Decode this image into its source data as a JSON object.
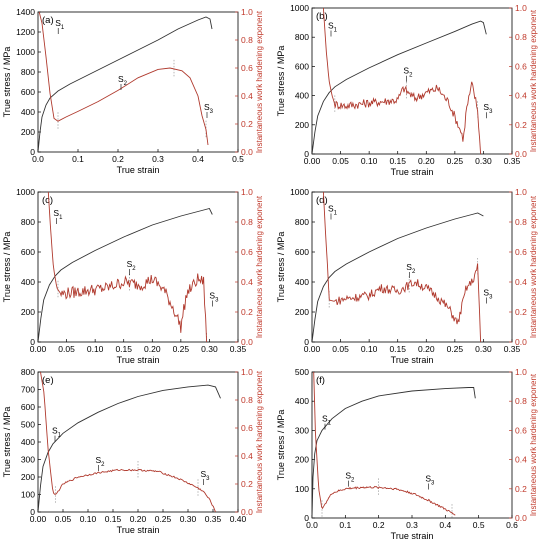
{
  "figure": {
    "accent_left": "#000000",
    "accent_right": "#c0392b",
    "stress_color": "#333333",
    "n_color": "#b03a2e"
  },
  "chart_data": [
    {
      "panel": "(a)",
      "type": "line",
      "xlabel": "True strain",
      "ylabel": "True stress / MPa",
      "y2label": "Instantaneous work hardening exponent",
      "xlim": [
        0,
        0.5
      ],
      "ylim": [
        0,
        1400
      ],
      "y2lim": [
        0,
        1.0
      ],
      "xticks": [
        "0.0",
        "0.1",
        "0.2",
        "0.3",
        "0.4",
        "0.5"
      ],
      "yticks": [
        "0",
        "200",
        "400",
        "600",
        "800",
        "1000",
        "1200",
        "1400"
      ],
      "y2ticks": [
        "0.0",
        "0.2",
        "0.4",
        "0.6",
        "0.8",
        "1.0"
      ],
      "stress": [
        [
          0,
          0
        ],
        [
          0.005,
          200
        ],
        [
          0.01,
          350
        ],
        [
          0.02,
          470
        ],
        [
          0.03,
          540
        ],
        [
          0.05,
          610
        ],
        [
          0.08,
          680
        ],
        [
          0.12,
          760
        ],
        [
          0.16,
          840
        ],
        [
          0.2,
          920
        ],
        [
          0.25,
          1020
        ],
        [
          0.3,
          1120
        ],
        [
          0.35,
          1230
        ],
        [
          0.4,
          1320
        ],
        [
          0.42,
          1350
        ],
        [
          0.43,
          1330
        ],
        [
          0.435,
          1230
        ]
      ],
      "n": [
        [
          0.003,
          1.0
        ],
        [
          0.01,
          0.92
        ],
        [
          0.02,
          0.68
        ],
        [
          0.03,
          0.42
        ],
        [
          0.04,
          0.24
        ],
        [
          0.05,
          0.22
        ],
        [
          0.07,
          0.25
        ],
        [
          0.1,
          0.29
        ],
        [
          0.15,
          0.36
        ],
        [
          0.2,
          0.44
        ],
        [
          0.25,
          0.53
        ],
        [
          0.3,
          0.59
        ],
        [
          0.33,
          0.6
        ],
        [
          0.36,
          0.58
        ],
        [
          0.38,
          0.53
        ],
        [
          0.4,
          0.4
        ],
        [
          0.41,
          0.26
        ],
        [
          0.42,
          0.16
        ],
        [
          0.425,
          0.05
        ]
      ],
      "noise": 0,
      "markers": [
        {
          "label": "S",
          "sub": "1",
          "x": 0.043,
          "y": 0.9
        },
        {
          "label": "S",
          "sub": "2",
          "x": 0.2,
          "y": 0.5
        },
        {
          "label": "S",
          "sub": "3",
          "x": 0.415,
          "y": 0.3
        }
      ],
      "dashes": [
        0.05,
        0.34,
        0.42
      ]
    },
    {
      "panel": "(b)",
      "type": "line",
      "xlabel": "True strain",
      "ylabel": "True stress / MPa",
      "y2label": "Instantaneous work hardening exponent",
      "xlim": [
        0,
        0.35
      ],
      "ylim": [
        0,
        1000
      ],
      "y2lim": [
        0,
        1.0
      ],
      "xticks": [
        "0.00",
        "0.05",
        "0.10",
        "0.15",
        "0.20",
        "0.25",
        "0.30",
        "0.35"
      ],
      "yticks": [
        "0",
        "200",
        "400",
        "600",
        "800",
        "1000"
      ],
      "y2ticks": [
        "0.0",
        "0.2",
        "0.4",
        "0.6",
        "0.8",
        "1.0"
      ],
      "stress": [
        [
          0,
          0
        ],
        [
          0.005,
          150
        ],
        [
          0.01,
          260
        ],
        [
          0.02,
          360
        ],
        [
          0.03,
          420
        ],
        [
          0.04,
          460
        ],
        [
          0.06,
          510
        ],
        [
          0.1,
          590
        ],
        [
          0.15,
          680
        ],
        [
          0.2,
          760
        ],
        [
          0.25,
          840
        ],
        [
          0.28,
          890
        ],
        [
          0.295,
          910
        ],
        [
          0.3,
          900
        ],
        [
          0.305,
          820
        ]
      ],
      "n": [
        [
          0.02,
          1.0
        ],
        [
          0.025,
          0.7
        ],
        [
          0.03,
          0.5
        ],
        [
          0.035,
          0.4
        ],
        [
          0.04,
          0.34
        ],
        [
          0.06,
          0.33
        ],
        [
          0.1,
          0.35
        ],
        [
          0.15,
          0.37
        ],
        [
          0.16,
          0.45
        ],
        [
          0.18,
          0.38
        ],
        [
          0.2,
          0.42
        ],
        [
          0.22,
          0.45
        ],
        [
          0.24,
          0.35
        ],
        [
          0.26,
          0.16
        ],
        [
          0.265,
          0.1
        ],
        [
          0.27,
          0.3
        ],
        [
          0.28,
          0.48
        ],
        [
          0.29,
          0.3
        ],
        [
          0.295,
          0.0
        ]
      ],
      "noise": 0.03,
      "markers": [
        {
          "label": "S",
          "sub": "1",
          "x": 0.028,
          "y": 0.86
        },
        {
          "label": "S",
          "sub": "2",
          "x": 0.16,
          "y": 0.55
        },
        {
          "label": "S",
          "sub": "3",
          "x": 0.3,
          "y": 0.3
        }
      ],
      "dashes": [
        0.04,
        0.165,
        0.29
      ]
    },
    {
      "panel": "(c)",
      "type": "line",
      "xlabel": "True strain",
      "ylabel": "True stress / MPa",
      "y2label": "Instantaneous work hardening exponent",
      "xlim": [
        0,
        0.35
      ],
      "ylim": [
        0,
        1000
      ],
      "y2lim": [
        0,
        1.0
      ],
      "xticks": [
        "0.00",
        "0.05",
        "0.10",
        "0.15",
        "0.20",
        "0.25",
        "0.30",
        "0.35"
      ],
      "yticks": [
        "0",
        "200",
        "400",
        "600",
        "800",
        "1000"
      ],
      "y2ticks": [
        "0.0",
        "0.2",
        "0.4",
        "0.6",
        "0.8",
        "1.0"
      ],
      "stress": [
        [
          0,
          0
        ],
        [
          0.005,
          160
        ],
        [
          0.01,
          280
        ],
        [
          0.02,
          380
        ],
        [
          0.03,
          440
        ],
        [
          0.04,
          480
        ],
        [
          0.06,
          530
        ],
        [
          0.1,
          610
        ],
        [
          0.15,
          700
        ],
        [
          0.2,
          780
        ],
        [
          0.25,
          840
        ],
        [
          0.29,
          880
        ],
        [
          0.3,
          890
        ],
        [
          0.305,
          850
        ]
      ],
      "n": [
        [
          0.018,
          1.0
        ],
        [
          0.022,
          0.75
        ],
        [
          0.027,
          0.5
        ],
        [
          0.033,
          0.36
        ],
        [
          0.04,
          0.32
        ],
        [
          0.08,
          0.34
        ],
        [
          0.12,
          0.36
        ],
        [
          0.15,
          0.4
        ],
        [
          0.18,
          0.38
        ],
        [
          0.2,
          0.42
        ],
        [
          0.22,
          0.35
        ],
        [
          0.24,
          0.2
        ],
        [
          0.25,
          0.1
        ],
        [
          0.26,
          0.32
        ],
        [
          0.28,
          0.42
        ],
        [
          0.29,
          0.4
        ],
        [
          0.295,
          0.0
        ]
      ],
      "noise": 0.04,
      "markers": [
        {
          "label": "S",
          "sub": "1",
          "x": 0.027,
          "y": 0.84
        },
        {
          "label": "S",
          "sub": "2",
          "x": 0.155,
          "y": 0.5
        },
        {
          "label": "S",
          "sub": "3",
          "x": 0.3,
          "y": 0.29
        }
      ],
      "dashes": [
        0.035,
        0.16,
        0.295
      ]
    },
    {
      "panel": "(d)",
      "type": "line",
      "xlabel": "True strain",
      "ylabel": "True stress / MPa",
      "y2label": "Instantaneous work hardening exponent",
      "xlim": [
        0,
        0.35
      ],
      "ylim": [
        0,
        1000
      ],
      "y2lim": [
        0,
        1.0
      ],
      "xticks": [
        "0.00",
        "0.05",
        "0.10",
        "0.15",
        "0.20",
        "0.25",
        "0.30",
        "0.35"
      ],
      "yticks": [
        "0",
        "200",
        "400",
        "600",
        "800",
        "1000"
      ],
      "y2ticks": [
        "0.0",
        "0.2",
        "0.4",
        "0.6",
        "0.8",
        "1.0"
      ],
      "stress": [
        [
          0,
          0
        ],
        [
          0.005,
          150
        ],
        [
          0.01,
          270
        ],
        [
          0.02,
          370
        ],
        [
          0.03,
          430
        ],
        [
          0.04,
          470
        ],
        [
          0.06,
          520
        ],
        [
          0.1,
          600
        ],
        [
          0.15,
          690
        ],
        [
          0.2,
          760
        ],
        [
          0.25,
          820
        ],
        [
          0.28,
          850
        ],
        [
          0.29,
          860
        ],
        [
          0.3,
          840
        ]
      ],
      "n": [
        [
          0.02,
          1.0
        ],
        [
          0.024,
          0.7
        ],
        [
          0.028,
          0.45
        ],
        [
          0.03,
          0.28
        ],
        [
          0.04,
          0.27
        ],
        [
          0.06,
          0.29
        ],
        [
          0.1,
          0.31
        ],
        [
          0.12,
          0.36
        ],
        [
          0.15,
          0.34
        ],
        [
          0.18,
          0.4
        ],
        [
          0.2,
          0.36
        ],
        [
          0.22,
          0.3
        ],
        [
          0.24,
          0.22
        ],
        [
          0.255,
          0.12
        ],
        [
          0.27,
          0.36
        ],
        [
          0.28,
          0.4
        ],
        [
          0.29,
          0.5
        ],
        [
          0.295,
          0.0
        ]
      ],
      "noise": 0.03,
      "markers": [
        {
          "label": "S",
          "sub": "1",
          "x": 0.028,
          "y": 0.87
        },
        {
          "label": "S",
          "sub": "2",
          "x": 0.165,
          "y": 0.48
        },
        {
          "label": "S",
          "sub": "3",
          "x": 0.3,
          "y": 0.31
        }
      ],
      "dashes": [
        0.03,
        0.17,
        0.29
      ]
    },
    {
      "panel": "(e)",
      "type": "line",
      "xlabel": "True strain",
      "ylabel": "True stress / MPa",
      "y2label": "Instantaneous work hardening exponent",
      "xlim": [
        0,
        0.4
      ],
      "ylim": [
        0,
        800
      ],
      "y2lim": [
        0,
        1.0
      ],
      "xticks": [
        "0.00",
        "0.05",
        "0.10",
        "0.15",
        "0.20",
        "0.25",
        "0.30",
        "0.35",
        "0.40"
      ],
      "yticks": [
        "0",
        "100",
        "200",
        "300",
        "400",
        "500",
        "600",
        "700",
        "800"
      ],
      "y2ticks": [
        "0.0",
        "0.2",
        "0.4",
        "0.6",
        "0.8",
        "1.0"
      ],
      "stress": [
        [
          0,
          0
        ],
        [
          0.005,
          150
        ],
        [
          0.01,
          260
        ],
        [
          0.02,
          340
        ],
        [
          0.03,
          390
        ],
        [
          0.05,
          450
        ],
        [
          0.08,
          510
        ],
        [
          0.12,
          570
        ],
        [
          0.16,
          620
        ],
        [
          0.2,
          660
        ],
        [
          0.25,
          695
        ],
        [
          0.3,
          715
        ],
        [
          0.34,
          725
        ],
        [
          0.355,
          715
        ],
        [
          0.365,
          650
        ]
      ],
      "n": [
        [
          0.005,
          1.0
        ],
        [
          0.012,
          0.85
        ],
        [
          0.02,
          0.45
        ],
        [
          0.03,
          0.14
        ],
        [
          0.035,
          0.12
        ],
        [
          0.05,
          0.2
        ],
        [
          0.08,
          0.25
        ],
        [
          0.12,
          0.28
        ],
        [
          0.16,
          0.3
        ],
        [
          0.2,
          0.3
        ],
        [
          0.24,
          0.29
        ],
        [
          0.28,
          0.24
        ],
        [
          0.31,
          0.19
        ],
        [
          0.33,
          0.15
        ],
        [
          0.345,
          0.08
        ],
        [
          0.355,
          0.0
        ]
      ],
      "noise": 0.006,
      "markers": [
        {
          "label": "S",
          "sub": "1",
          "x": 0.028,
          "y": 0.56
        },
        {
          "label": "S",
          "sub": "2",
          "x": 0.115,
          "y": 0.35
        },
        {
          "label": "S",
          "sub": "3",
          "x": 0.325,
          "y": 0.25
        }
      ],
      "dashes": [
        0.035,
        0.2,
        0.32
      ]
    },
    {
      "panel": "(f)",
      "type": "line",
      "xlabel": "True strain",
      "ylabel": "True stress / MPa",
      "y2label": "Instantaneous work hardening exponent",
      "xlim": [
        0,
        0.6
      ],
      "ylim": [
        0,
        500
      ],
      "y2lim": [
        0,
        1.0
      ],
      "xticks": [
        "0.0",
        "0.1",
        "0.2",
        "0.3",
        "0.4",
        "0.5",
        "0.6"
      ],
      "yticks": [
        "0",
        "100",
        "200",
        "300",
        "400",
        "500"
      ],
      "y2ticks": [
        "0.0",
        "0.2",
        "0.4",
        "0.6",
        "0.8",
        "1.0"
      ],
      "stress": [
        [
          0,
          0
        ],
        [
          0.003,
          140
        ],
        [
          0.008,
          220
        ],
        [
          0.015,
          265
        ],
        [
          0.03,
          300
        ],
        [
          0.06,
          340
        ],
        [
          0.1,
          375
        ],
        [
          0.15,
          400
        ],
        [
          0.2,
          418
        ],
        [
          0.3,
          435
        ],
        [
          0.4,
          443
        ],
        [
          0.47,
          447
        ],
        [
          0.485,
          447
        ],
        [
          0.49,
          410
        ]
      ],
      "n": [
        [
          0.005,
          1.0
        ],
        [
          0.01,
          0.6
        ],
        [
          0.02,
          0.2
        ],
        [
          0.03,
          0.06
        ],
        [
          0.04,
          0.1
        ],
        [
          0.06,
          0.17
        ],
        [
          0.1,
          0.2
        ],
        [
          0.15,
          0.21
        ],
        [
          0.2,
          0.21
        ],
        [
          0.25,
          0.2
        ],
        [
          0.3,
          0.17
        ],
        [
          0.35,
          0.12
        ],
        [
          0.4,
          0.06
        ],
        [
          0.43,
          0.02
        ]
      ],
      "noise": 0.007,
      "markers": [
        {
          "label": "S",
          "sub": "1",
          "x": 0.03,
          "y": 0.66
        },
        {
          "label": "S",
          "sub": "2",
          "x": 0.1,
          "y": 0.27
        },
        {
          "label": "S",
          "sub": "3",
          "x": 0.34,
          "y": 0.25
        }
      ],
      "dashes": [
        0.03,
        0.2,
        0.42
      ]
    }
  ]
}
